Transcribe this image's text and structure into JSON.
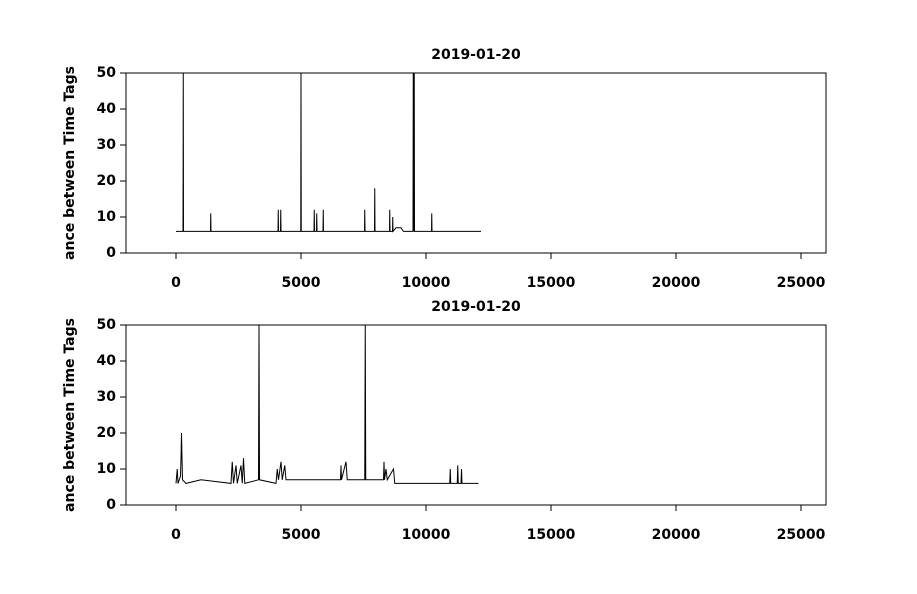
{
  "chart_data": [
    {
      "type": "line",
      "title": "2019-01-20",
      "y_label": "ance between Time Tags",
      "color": "#000000",
      "x": [
        0,
        280,
        290,
        300,
        1380,
        1390,
        1400,
        4080,
        4090,
        4100,
        4180,
        4190,
        4200,
        4990,
        5000,
        5010,
        5520,
        5530,
        5540,
        5620,
        5630,
        5640,
        5880,
        5890,
        5900,
        7540,
        7550,
        7560,
        7940,
        7950,
        7960,
        8540,
        8550,
        8560,
        8660,
        8670,
        8680,
        8800,
        9000,
        9100,
        9480,
        9490,
        9500,
        9530,
        9540,
        10220,
        10230,
        10240,
        12200
      ],
      "values": [
        6,
        6,
        50,
        6,
        6,
        11,
        6,
        6,
        12,
        6,
        6,
        12,
        6,
        6,
        50,
        6,
        6,
        12,
        6,
        6,
        11,
        6,
        6,
        12,
        6,
        6,
        12,
        6,
        6,
        18,
        6,
        6,
        12,
        6,
        6,
        10,
        6,
        7,
        7,
        6,
        6,
        50,
        6,
        50,
        6,
        6,
        11,
        6,
        6
      ],
      "xlim": [
        -2000,
        26000
      ],
      "xticks": [
        0,
        5000,
        10000,
        15000,
        20000,
        25000
      ],
      "ylim": [
        0,
        50
      ],
      "yticks": [
        0,
        10,
        20,
        30,
        40,
        50
      ]
    },
    {
      "type": "line",
      "title": "2019-01-20",
      "y_label": "ance between Time Tags",
      "color": "#000000",
      "x": [
        0,
        50,
        80,
        180,
        200,
        220,
        240,
        260,
        400,
        1000,
        2200,
        2250,
        2300,
        2400,
        2450,
        2600,
        2650,
        2700,
        2750,
        3300,
        3320,
        3340,
        4000,
        4050,
        4100,
        4200,
        4250,
        4350,
        4400,
        6580,
        6600,
        6620,
        6800,
        6850,
        7550,
        7570,
        7590,
        8300,
        8320,
        8340,
        8400,
        8450,
        8700,
        8750,
        10000,
        10950,
        10970,
        10990,
        11250,
        11270,
        11290,
        11400,
        11420,
        11440,
        12100
      ],
      "values": [
        6,
        10,
        6,
        8,
        13,
        20,
        13,
        7,
        6,
        7,
        6,
        12,
        6,
        11,
        6,
        11,
        6,
        13,
        6,
        7,
        50,
        7,
        6,
        10,
        7,
        12,
        7,
        11,
        7,
        7,
        11,
        7,
        12,
        7,
        7,
        50,
        7,
        7,
        12,
        7,
        10,
        7,
        10,
        6,
        6,
        6,
        10,
        6,
        6,
        11,
        6,
        6,
        10,
        6,
        6
      ],
      "xlim": [
        -2000,
        26000
      ],
      "xticks": [
        0,
        5000,
        10000,
        15000,
        20000,
        25000
      ],
      "ylim": [
        0,
        50
      ],
      "yticks": [
        0,
        10,
        20,
        30,
        40,
        50
      ]
    }
  ]
}
